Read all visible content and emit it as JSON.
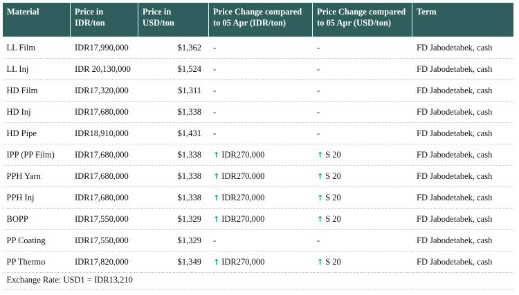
{
  "headers": [
    "Material",
    "Price in IDR/ton",
    "Price in USD/ton",
    "Price Change compared to 05 Apr (IDR/ton)",
    "Price Change compared to 05 Apr (USD/ton)",
    "Term"
  ],
  "rows": [
    {
      "material": "LL Film",
      "idr": "IDR17,990,000",
      "usd": "$1,362",
      "chg_idr": "-",
      "chg_usd": "-",
      "up": false,
      "term": "FD Jabodetabek, cash"
    },
    {
      "material": "LL Inj",
      "idr": "IDR 20,130,000",
      "usd": "$1,524",
      "chg_idr": "-",
      "chg_usd": "-",
      "up": false,
      "term": "FD Jabodetabek, cash"
    },
    {
      "material": "HD Film",
      "idr": "IDR17,320,000",
      "usd": "$1,311",
      "chg_idr": "-",
      "chg_usd": "-",
      "up": false,
      "term": "FD Jabodetabek, cash"
    },
    {
      "material": "HD Inj",
      "idr": "IDR17,680,000",
      "usd": "$1,338",
      "chg_idr": "-",
      "chg_usd": "-",
      "up": false,
      "term": "FD Jabodetabek, cash"
    },
    {
      "material": "HD Pipe",
      "idr": "IDR18,910,000",
      "usd": "$1,431",
      "chg_idr": "-",
      "chg_usd": "-",
      "up": false,
      "term": "FD Jabodetabek, cash"
    },
    {
      "material": "IPP (PP Film)",
      "idr": "IDR17,680,000",
      "usd": "$1,338",
      "chg_idr": "IDR270,000",
      "chg_usd": "S 20",
      "up": true,
      "term": "FD Jabodetabek, cash"
    },
    {
      "material": "PPH Yarn",
      "idr": "IDR17,680,000",
      "usd": "$1,338",
      "chg_idr": "IDR270,000",
      "chg_usd": "S 20",
      "up": true,
      "term": "FD Jabodetabek, cash"
    },
    {
      "material": "PPH Inj",
      "idr": "IDR17,680,000",
      "usd": "$1,338",
      "chg_idr": "IDR270,000",
      "chg_usd": "S 20",
      "up": true,
      "term": "FD Jabodetabek, cash"
    },
    {
      "material": "BOPP",
      "idr": "IDR17,550,000",
      "usd": "$1,329",
      "chg_idr": "IDR270,000",
      "chg_usd": "S 20",
      "up": true,
      "term": "FD Jabodetabek, cash"
    },
    {
      "material": "PP Coating",
      "idr": "IDR17,550,000",
      "usd": "$1,329",
      "chg_idr": "-",
      "chg_usd": "-",
      "up": false,
      "term": "FD Jabodetabek, cash"
    },
    {
      "material": "PP Thermo",
      "idr": "IDR17,820,000",
      "usd": "$1,349",
      "chg_idr": "IDR270,000",
      "chg_usd": "S 20",
      "up": true,
      "term": "FD Jabodetabek, cash"
    }
  ],
  "footer": "Exchange Rate: USD1 = IDR13,210",
  "colors": {
    "header_bg": "#2f5f5c",
    "header_text": "#ffffff",
    "up_arrow": "#1aa37a"
  },
  "icons": {
    "up": "up-arrow-icon"
  }
}
